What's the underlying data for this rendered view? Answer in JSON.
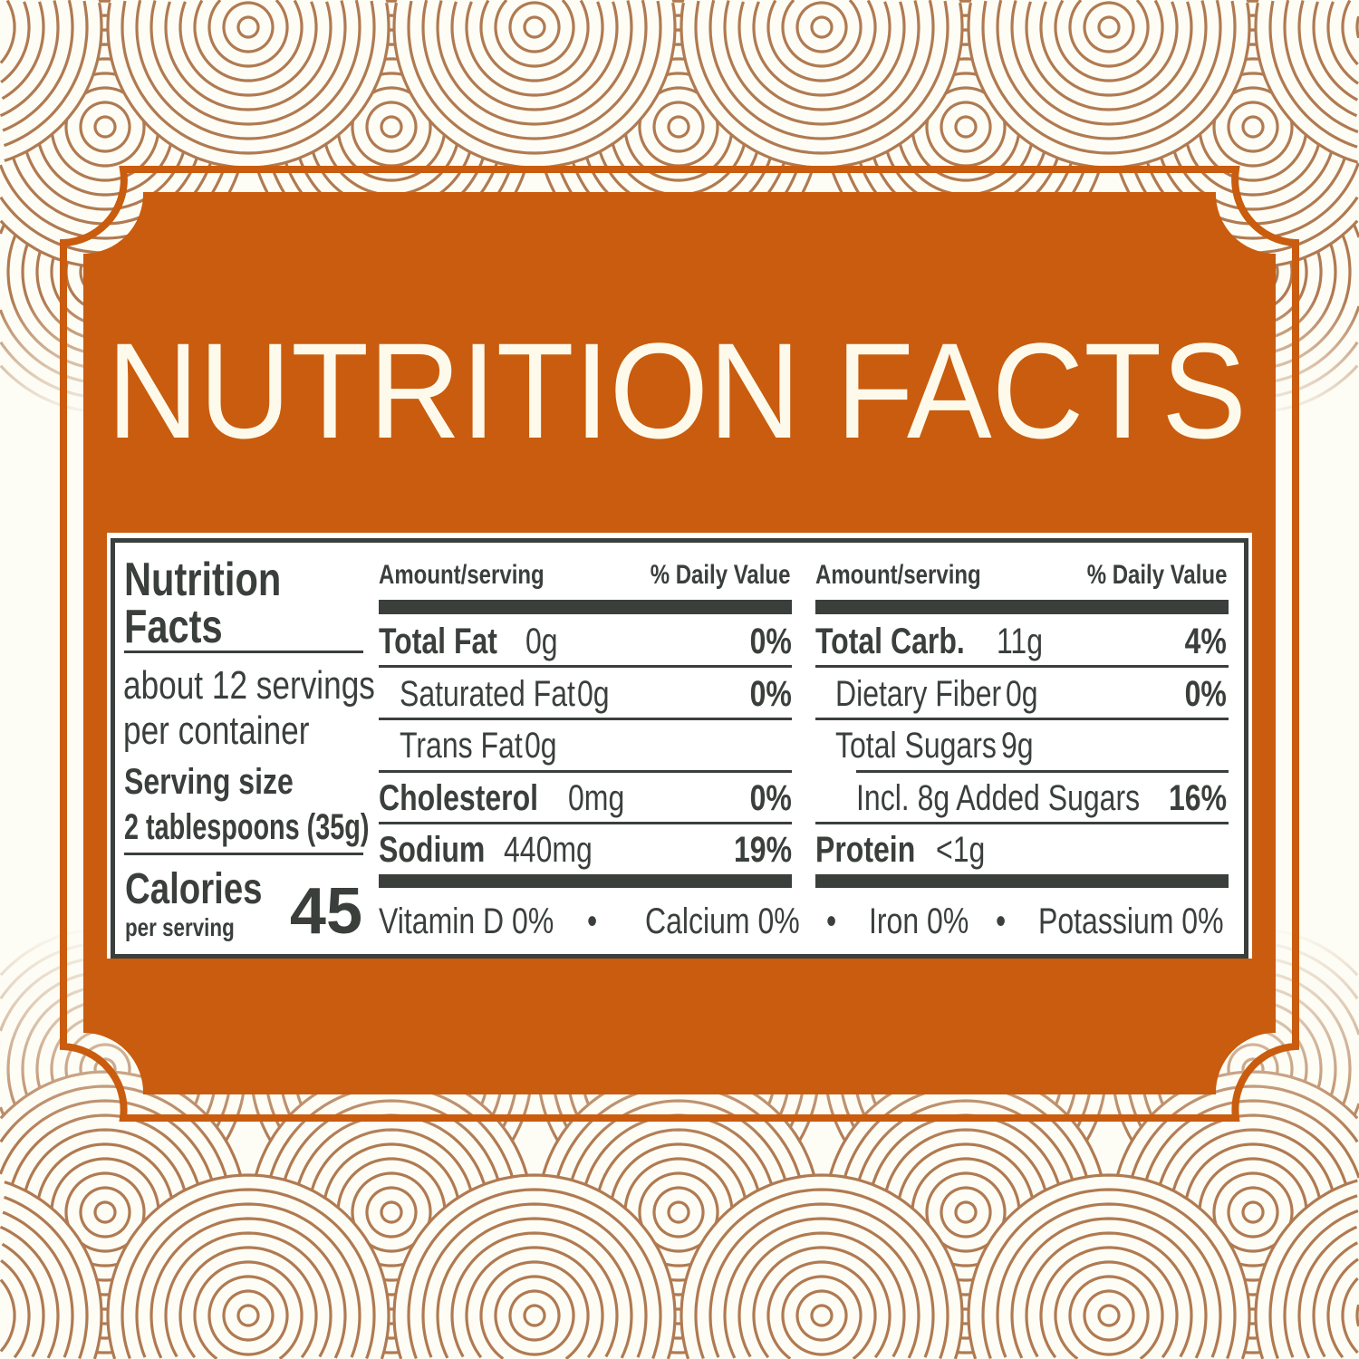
{
  "colors": {
    "background": "#FDFDF5",
    "pattern": "#B07A52",
    "brand_orange": "#C95C0E",
    "title_text": "#FDFAEB",
    "label_text": "#3A3F3C"
  },
  "title": "NUTRITION FACTS",
  "label": {
    "heading": "Nutrition Facts",
    "heading_line1": "Nutrition",
    "heading_line2": "Facts",
    "servings_line1": "about 12 servings",
    "servings_line2": "per container",
    "serving_size_label": "Serving size",
    "serving_size_value": "2 tablespoons (35g)",
    "calories_label": "Calories",
    "calories_sub": "per serving",
    "calories_value": "45",
    "col_header_amount": "Amount/serving",
    "col_header_dv": "% Daily Value",
    "left_rows": [
      {
        "name": "Total Fat",
        "amount": "0g",
        "dv": "0%"
      },
      {
        "name": "Saturated Fat",
        "amount": "0g",
        "dv": "0%"
      },
      {
        "name": "Trans Fat",
        "amount": "0g",
        "dv": ""
      },
      {
        "name": "Cholesterol",
        "amount": "0mg",
        "dv": "0%"
      },
      {
        "name": "Sodium",
        "amount": "440mg",
        "dv": "19%"
      }
    ],
    "right_rows": [
      {
        "name": "Total Carb.",
        "amount": "11g",
        "dv": "4%"
      },
      {
        "name": "Dietary Fiber",
        "amount": "0g",
        "dv": "0%"
      },
      {
        "name": "Total Sugars",
        "amount": "9g",
        "dv": ""
      },
      {
        "name": "Incl. 8g Added Sugars",
        "amount": "",
        "dv": "16%"
      },
      {
        "name": "Protein",
        "amount": "<1g",
        "dv": ""
      }
    ],
    "micronutrients": [
      "Vitamin D 0%",
      "Calcium 0%",
      "Iron 0%",
      "Potassium 0%"
    ],
    "separator": "•"
  }
}
